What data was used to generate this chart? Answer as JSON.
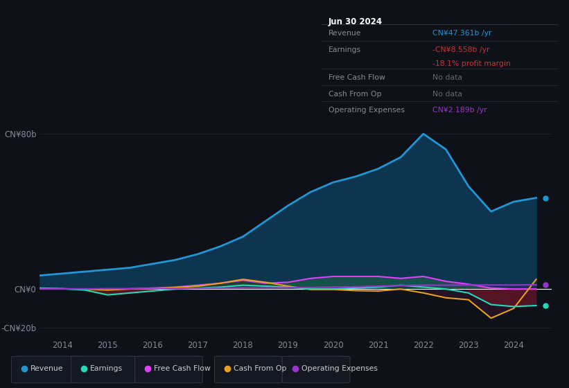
{
  "background_color": "#0e1117",
  "plot_bg_color": "#0e1117",
  "years": [
    2013.5,
    2014.0,
    2014.5,
    2015.0,
    2015.5,
    2016.0,
    2016.5,
    2017.0,
    2017.5,
    2018.0,
    2018.5,
    2019.0,
    2019.5,
    2020.0,
    2020.5,
    2021.0,
    2021.5,
    2022.0,
    2022.5,
    2023.0,
    2023.5,
    2024.0,
    2024.5
  ],
  "revenue": [
    7,
    8,
    9,
    10,
    11,
    13,
    15,
    18,
    22,
    27,
    35,
    43,
    50,
    55,
    58,
    62,
    68,
    80,
    72,
    53,
    40,
    45,
    47
  ],
  "earnings": [
    0.5,
    0.2,
    -0.5,
    -3.0,
    -2.0,
    -1.0,
    0.0,
    0.5,
    1.0,
    2.0,
    1.5,
    1.0,
    0.0,
    0.0,
    0.5,
    1.0,
    2.0,
    1.0,
    0.0,
    -2.0,
    -8.0,
    -9.0,
    -8.5
  ],
  "free_cash_flow": [
    0.2,
    0.1,
    0.0,
    -0.3,
    0.1,
    0.5,
    1.0,
    2.0,
    3.0,
    4.5,
    3.0,
    3.5,
    5.5,
    6.5,
    6.5,
    6.5,
    5.5,
    6.5,
    4.0,
    2.5,
    0.5,
    0.0,
    0.0
  ],
  "cash_from_op": [
    0.2,
    0.1,
    0.0,
    -0.5,
    0.1,
    0.3,
    0.8,
    1.5,
    3.0,
    5.0,
    3.5,
    1.5,
    -0.2,
    -0.2,
    -0.8,
    -1.0,
    0.0,
    -2.0,
    -4.5,
    -5.5,
    -15.0,
    -10.0,
    5.0
  ],
  "operating_expenses": [
    0.1,
    0.1,
    0.1,
    0.2,
    0.2,
    0.3,
    0.3,
    0.4,
    0.5,
    0.6,
    0.6,
    0.7,
    0.8,
    1.0,
    1.2,
    1.5,
    1.8,
    2.0,
    2.0,
    2.1,
    2.1,
    2.1,
    2.2
  ],
  "revenue_color": "#2196d4",
  "revenue_fill": "#0d3550",
  "earnings_color": "#26d9b8",
  "earnings_fill_pos": "#0d4040",
  "earnings_fill_neg": "#5c1525",
  "free_cash_flow_color": "#e040fb",
  "cash_from_op_color": "#e8a020",
  "operating_expenses_color": "#9933cc",
  "ylim": [
    -25,
    85
  ],
  "xlim": [
    2013.5,
    2024.85
  ],
  "grid_color": "#222a38",
  "text_color": "#cccccc",
  "axis_label_color": "#888899",
  "box_bg": "#141921",
  "box_border": "#2a3040",
  "title_box_date": "Jun 30 2024",
  "revenue_value": "CN¥47.361b /yr",
  "revenue_value_color": "#2196d4",
  "earnings_value": "-CN¥8.558b /yr",
  "earnings_value_color": "#cc3333",
  "margin_value": "-18.1% profit margin",
  "margin_value_color": "#cc3333",
  "fcf_value": "No data",
  "cfo_value": "No data",
  "opex_value": "CN¥2.189b /yr",
  "opex_value_color": "#9933cc",
  "nodata_color": "#666677"
}
